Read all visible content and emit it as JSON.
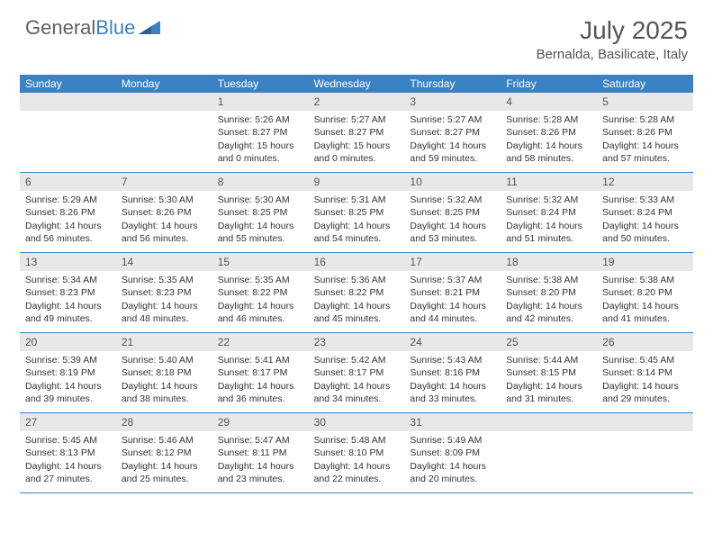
{
  "logo": {
    "text_gray": "General",
    "text_blue": "Blue"
  },
  "header": {
    "month_title": "July 2025",
    "location": "Bernalda, Basilicate, Italy"
  },
  "colors": {
    "header_bg": "#3b82c4",
    "daynum_bg": "#e8e8e8",
    "text_gray": "#555555",
    "body_text": "#333333"
  },
  "weekdays": [
    "Sunday",
    "Monday",
    "Tuesday",
    "Wednesday",
    "Thursday",
    "Friday",
    "Saturday"
  ],
  "weeks": [
    [
      null,
      null,
      {
        "n": "1",
        "sr": "5:26 AM",
        "ss": "8:27 PM",
        "dl": "15 hours and 0 minutes."
      },
      {
        "n": "2",
        "sr": "5:27 AM",
        "ss": "8:27 PM",
        "dl": "15 hours and 0 minutes."
      },
      {
        "n": "3",
        "sr": "5:27 AM",
        "ss": "8:27 PM",
        "dl": "14 hours and 59 minutes."
      },
      {
        "n": "4",
        "sr": "5:28 AM",
        "ss": "8:26 PM",
        "dl": "14 hours and 58 minutes."
      },
      {
        "n": "5",
        "sr": "5:28 AM",
        "ss": "8:26 PM",
        "dl": "14 hours and 57 minutes."
      }
    ],
    [
      {
        "n": "6",
        "sr": "5:29 AM",
        "ss": "8:26 PM",
        "dl": "14 hours and 56 minutes."
      },
      {
        "n": "7",
        "sr": "5:30 AM",
        "ss": "8:26 PM",
        "dl": "14 hours and 56 minutes."
      },
      {
        "n": "8",
        "sr": "5:30 AM",
        "ss": "8:25 PM",
        "dl": "14 hours and 55 minutes."
      },
      {
        "n": "9",
        "sr": "5:31 AM",
        "ss": "8:25 PM",
        "dl": "14 hours and 54 minutes."
      },
      {
        "n": "10",
        "sr": "5:32 AM",
        "ss": "8:25 PM",
        "dl": "14 hours and 53 minutes."
      },
      {
        "n": "11",
        "sr": "5:32 AM",
        "ss": "8:24 PM",
        "dl": "14 hours and 51 minutes."
      },
      {
        "n": "12",
        "sr": "5:33 AM",
        "ss": "8:24 PM",
        "dl": "14 hours and 50 minutes."
      }
    ],
    [
      {
        "n": "13",
        "sr": "5:34 AM",
        "ss": "8:23 PM",
        "dl": "14 hours and 49 minutes."
      },
      {
        "n": "14",
        "sr": "5:35 AM",
        "ss": "8:23 PM",
        "dl": "14 hours and 48 minutes."
      },
      {
        "n": "15",
        "sr": "5:35 AM",
        "ss": "8:22 PM",
        "dl": "14 hours and 46 minutes."
      },
      {
        "n": "16",
        "sr": "5:36 AM",
        "ss": "8:22 PM",
        "dl": "14 hours and 45 minutes."
      },
      {
        "n": "17",
        "sr": "5:37 AM",
        "ss": "8:21 PM",
        "dl": "14 hours and 44 minutes."
      },
      {
        "n": "18",
        "sr": "5:38 AM",
        "ss": "8:20 PM",
        "dl": "14 hours and 42 minutes."
      },
      {
        "n": "19",
        "sr": "5:38 AM",
        "ss": "8:20 PM",
        "dl": "14 hours and 41 minutes."
      }
    ],
    [
      {
        "n": "20",
        "sr": "5:39 AM",
        "ss": "8:19 PM",
        "dl": "14 hours and 39 minutes."
      },
      {
        "n": "21",
        "sr": "5:40 AM",
        "ss": "8:18 PM",
        "dl": "14 hours and 38 minutes."
      },
      {
        "n": "22",
        "sr": "5:41 AM",
        "ss": "8:17 PM",
        "dl": "14 hours and 36 minutes."
      },
      {
        "n": "23",
        "sr": "5:42 AM",
        "ss": "8:17 PM",
        "dl": "14 hours and 34 minutes."
      },
      {
        "n": "24",
        "sr": "5:43 AM",
        "ss": "8:16 PM",
        "dl": "14 hours and 33 minutes."
      },
      {
        "n": "25",
        "sr": "5:44 AM",
        "ss": "8:15 PM",
        "dl": "14 hours and 31 minutes."
      },
      {
        "n": "26",
        "sr": "5:45 AM",
        "ss": "8:14 PM",
        "dl": "14 hours and 29 minutes."
      }
    ],
    [
      {
        "n": "27",
        "sr": "5:45 AM",
        "ss": "8:13 PM",
        "dl": "14 hours and 27 minutes."
      },
      {
        "n": "28",
        "sr": "5:46 AM",
        "ss": "8:12 PM",
        "dl": "14 hours and 25 minutes."
      },
      {
        "n": "29",
        "sr": "5:47 AM",
        "ss": "8:11 PM",
        "dl": "14 hours and 23 minutes."
      },
      {
        "n": "30",
        "sr": "5:48 AM",
        "ss": "8:10 PM",
        "dl": "14 hours and 22 minutes."
      },
      {
        "n": "31",
        "sr": "5:49 AM",
        "ss": "8:09 PM",
        "dl": "14 hours and 20 minutes."
      },
      null,
      null
    ]
  ],
  "labels": {
    "sunrise": "Sunrise:",
    "sunset": "Sunset:",
    "daylight": "Daylight:"
  }
}
